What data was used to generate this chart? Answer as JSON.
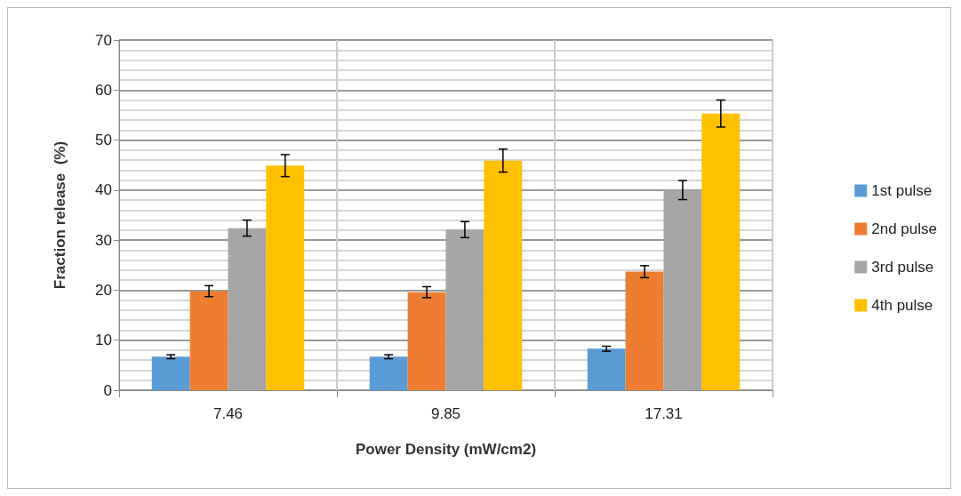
{
  "chart_data": {
    "type": "bar",
    "xlabel": "Power Density (mW/cm2)",
    "ylabel": "Fraction release  (%)",
    "categories": [
      "7.46",
      "9.85",
      "17.31"
    ],
    "series": [
      {
        "name": "1st pulse",
        "color": "#5b9bd5",
        "values": [
          6.7,
          6.7,
          8.3
        ],
        "errors": [
          0.4,
          0.4,
          0.5
        ]
      },
      {
        "name": "2nd pulse",
        "color": "#ed7d31",
        "values": [
          19.8,
          19.6,
          23.7
        ],
        "errors": [
          1.1,
          1.1,
          1.2
        ]
      },
      {
        "name": "3rd pulse",
        "color": "#a5a5a5",
        "values": [
          32.4,
          32.1,
          40.0
        ],
        "errors": [
          1.6,
          1.6,
          1.9
        ]
      },
      {
        "name": "4th pulse",
        "color": "#ffc000",
        "values": [
          44.9,
          45.9,
          55.3
        ],
        "errors": [
          2.2,
          2.3,
          2.7
        ]
      }
    ],
    "ylim": [
      0,
      70
    ],
    "yticks": [
      0,
      10,
      20,
      30,
      40,
      50,
      60,
      70
    ],
    "grid": true,
    "legend": "right"
  }
}
